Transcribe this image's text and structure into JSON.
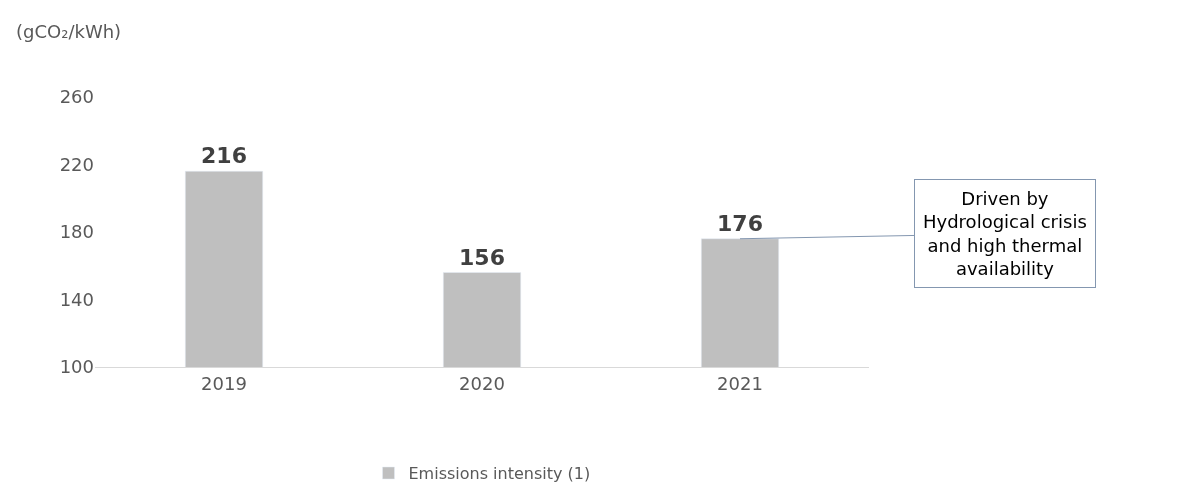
{
  "chart_data": {
    "type": "bar",
    "ylabel": "(gCO₂/kWh)",
    "categories": [
      "2019",
      "2020",
      "2021"
    ],
    "series": [
      {
        "name": "Emissions intensity (1)",
        "color": "#bfbfbf",
        "values": [
          216,
          156,
          176
        ]
      }
    ],
    "ylim": [
      100,
      260
    ],
    "yticks": [
      100,
      140,
      180,
      220,
      260
    ],
    "data_labels": true,
    "legend": "bottom",
    "annotations": [
      {
        "text": "Driven by\nHydrological crisis\nand high thermal\navailability",
        "x": "2021",
        "y": 176
      }
    ]
  }
}
